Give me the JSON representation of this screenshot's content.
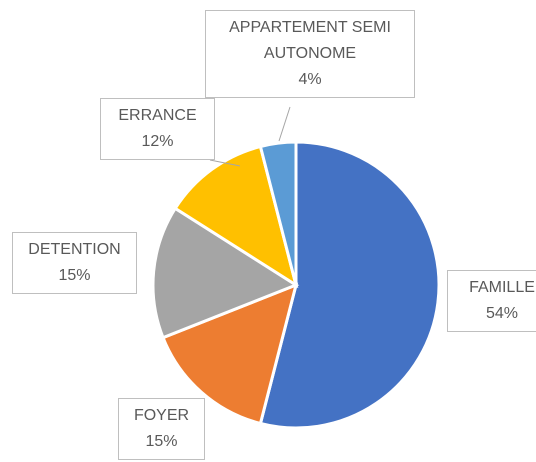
{
  "chart_data": {
    "type": "pie",
    "categories": [
      "FAMILLE",
      "FOYER",
      "DETENTION",
      "ERRANCE",
      "APPARTEMENT SEMI AUTONOME"
    ],
    "values": [
      54,
      15,
      15,
      12,
      4
    ],
    "value_labels": [
      "54%",
      "15%",
      "15%",
      "12%",
      "4%"
    ],
    "colors": [
      "#4472c4",
      "#ed7d31",
      "#a5a5a5",
      "#ffc000",
      "#5b9bd5"
    ]
  }
}
